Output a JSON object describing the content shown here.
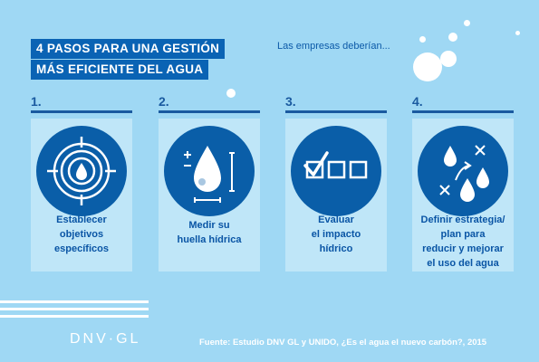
{
  "title": {
    "line1": "4 PASOS PARA UNA GESTIÓN",
    "line2": "MÁS EFICIENTE DEL AGUA"
  },
  "subtitle": "Las empresas deberían...",
  "steps": [
    {
      "number": "1.",
      "icon": "target-water-drop-icon",
      "lines": [
        "Establecer",
        "objetivos",
        "específicos"
      ]
    },
    {
      "number": "2.",
      "icon": "water-footprint-measure-icon",
      "lines": [
        "Medir su",
        "huella hídrica"
      ]
    },
    {
      "number": "3.",
      "icon": "checkbox-evaluation-icon",
      "lines": [
        "Evaluar",
        "el impacto",
        "hídrico"
      ]
    },
    {
      "number": "4.",
      "icon": "strategy-plan-drops-icon",
      "lines": [
        "Definir estrategia/",
        "plan para",
        "reducir y mejorar",
        "el uso del agua"
      ]
    }
  ],
  "logo": "DNV·GL",
  "source": "Fuente: Estudio DNV GL y UNIDO, ¿Es el agua el nuevo carbón?, 2015",
  "colors": {
    "background": "#9fd8f4",
    "card": "#bfe6f8",
    "accent": "#0a5ea8",
    "title_bg": "#0a63b4"
  }
}
